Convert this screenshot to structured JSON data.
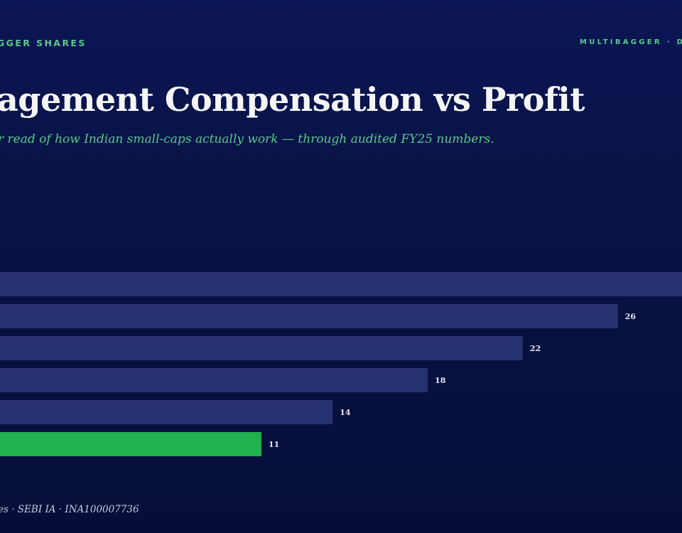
{
  "header": {
    "brand_left": "GGER SHARES",
    "brand_right": "MULTIBAGGER · D"
  },
  "title": "agement Compensation vs Profit",
  "subtitle": "r read of how Indian small-caps actually work — through audited FY25 numbers.",
  "footer": "es · SEBI IA · INA100007736",
  "colors": {
    "bar": "#263170",
    "highlight": "#22b150",
    "accent": "#58c98a"
  },
  "chart_data": {
    "type": "bar",
    "orientation": "horizontal",
    "values": [
      null,
      26,
      22,
      18,
      14,
      11
    ],
    "highlight_index": 5,
    "xlim": [
      0,
      28.7
    ],
    "grid": false,
    "legend": "none"
  }
}
